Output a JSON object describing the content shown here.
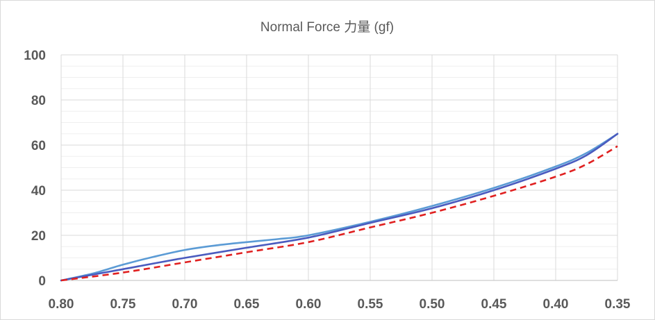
{
  "chart_data": {
    "type": "line",
    "title": "Normal Force 力量 (gf)",
    "xlabel": "",
    "ylabel": "",
    "xlim": [
      0.8,
      0.35
    ],
    "ylim": [
      0,
      100
    ],
    "x_reversed": true,
    "x_ticks": [
      "0.80",
      "0.75",
      "0.70",
      "0.65",
      "0.60",
      "0.55",
      "0.50",
      "0.45",
      "0.40",
      "0.35"
    ],
    "y_ticks": [
      "0",
      "20",
      "40",
      "60",
      "80",
      "100"
    ],
    "grid": true,
    "legend": "none",
    "series": [
      {
        "color": "#5b9bd5",
        "style": "solid",
        "points": [
          [
            0.8,
            0
          ],
          [
            0.775,
            3
          ],
          [
            0.75,
            7
          ],
          [
            0.725,
            10.5
          ],
          [
            0.7,
            13.5
          ],
          [
            0.675,
            15.5
          ],
          [
            0.65,
            17
          ],
          [
            0.625,
            18.3
          ],
          [
            0.6,
            20
          ],
          [
            0.55,
            26
          ],
          [
            0.5,
            33
          ],
          [
            0.45,
            41
          ],
          [
            0.4,
            50.5
          ],
          [
            0.375,
            56.5
          ],
          [
            0.35,
            65
          ]
        ]
      },
      {
        "color": "#4a5bbf",
        "style": "solid",
        "points": [
          [
            0.8,
            0
          ],
          [
            0.775,
            2.5
          ],
          [
            0.75,
            5
          ],
          [
            0.7,
            10
          ],
          [
            0.65,
            14.5
          ],
          [
            0.6,
            19
          ],
          [
            0.55,
            25.5
          ],
          [
            0.5,
            32
          ],
          [
            0.45,
            40
          ],
          [
            0.4,
            49.5
          ],
          [
            0.375,
            55.5
          ],
          [
            0.35,
            65
          ]
        ]
      },
      {
        "color": "#e02020",
        "style": "dashed",
        "points": [
          [
            0.8,
            0
          ],
          [
            0.75,
            3.5
          ],
          [
            0.7,
            8
          ],
          [
            0.65,
            12.5
          ],
          [
            0.6,
            17
          ],
          [
            0.55,
            23.5
          ],
          [
            0.5,
            30
          ],
          [
            0.45,
            37.5
          ],
          [
            0.4,
            46
          ],
          [
            0.375,
            51.5
          ],
          [
            0.35,
            59.5
          ]
        ]
      }
    ]
  }
}
